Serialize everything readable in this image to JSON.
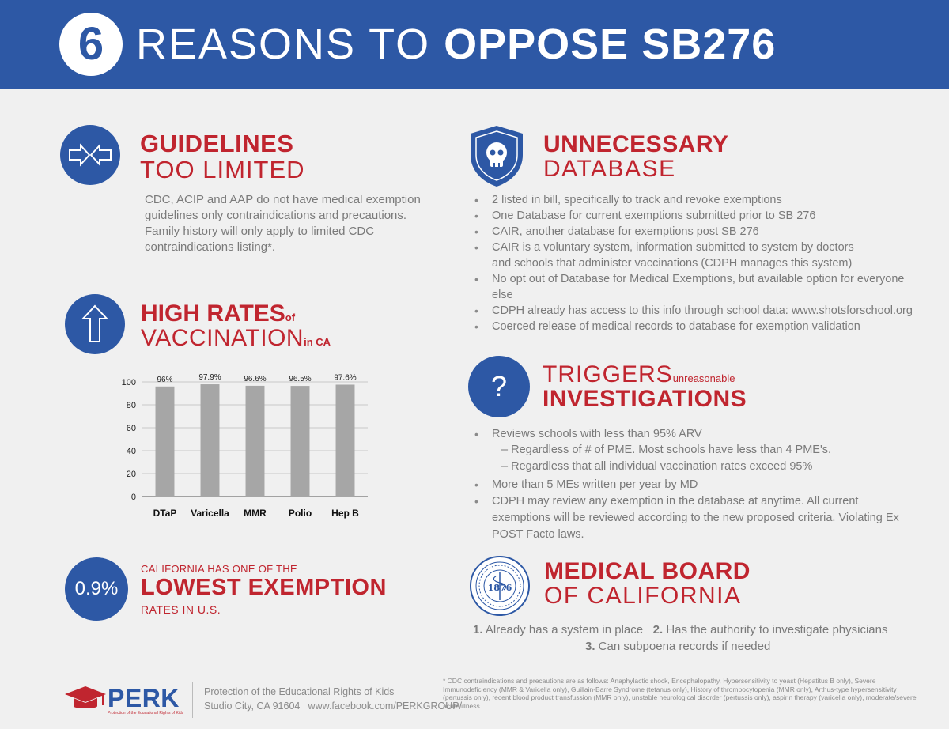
{
  "header": {
    "number": "6",
    "title_light": "REASONS TO ",
    "title_bold": "OPPOSE SB276"
  },
  "guidelines": {
    "heading_bold": "GUIDELINES",
    "heading_light": "TOO LIMITED",
    "body_lines": [
      "CDC, ACIP and AAP do not have medical exemption",
      "guidelines only contraindications and precautions.",
      "Family history will only apply to limited CDC",
      "contraindications listing*."
    ]
  },
  "high_rates": {
    "heading_bold": "HIGH RATES",
    "heading_small": "of",
    "heading_light": "VACCINATION",
    "heading_small2": "in CA"
  },
  "chart_data": {
    "type": "bar",
    "categories": [
      "DTaP",
      "Varicella",
      "MMR",
      "Polio",
      "Hep B"
    ],
    "values": [
      96,
      97.9,
      96.6,
      96.5,
      97.6
    ],
    "data_labels": [
      "96%",
      "97.9%",
      "96.6%",
      "96.5%",
      "97.6%"
    ],
    "yticks": [
      "0",
      "20",
      "40",
      "60",
      "80",
      "100"
    ],
    "ylim": [
      0,
      100
    ],
    "grid": true,
    "bar_color": "#a6a6a6"
  },
  "lowest": {
    "rate": "0.9%",
    "line1": "CALIFORNIA HAS ONE OF THE",
    "line2": "LOWEST EXEMPTION",
    "line3": "RATES IN U.S."
  },
  "database": {
    "heading_bold": "UNNECESSARY",
    "heading_light": "DATABASE",
    "bullets": [
      "2 listed in bill, specifically to track and revoke exemptions",
      "One Database for current exemptions submitted prior to SB 276",
      "CAIR, another database for exemptions post SB 276",
      "CAIR is a voluntary system, information submitted to system by doctors and schools that administer vaccinations (CDPH manages this system)",
      "No opt out of Database for Medical Exemptions, but available option for everyone else",
      "CDPH already has access to this info through school data: www.shotsforschool.org",
      "Coerced release of medical records to database for exemption validation"
    ]
  },
  "triggers": {
    "icon_text": "?",
    "heading_light": "TRIGGERS",
    "heading_small": "unreasonable",
    "heading_bold": "INVESTIGATIONS",
    "bullet1": "Reviews schools with less than 95% ARV",
    "sub1": "– Regardless of  # of PME. Most schools have less than 4 PME's.",
    "sub2": "– Regardless that all individual vaccination rates exceed 95%",
    "bullet2": "More than 5 MEs written per year by MD",
    "bullet3": "CDPH may review any exemption in the database at anytime. All current exemptions will be reviewed according to the new proposed criteria. Violating Ex POST Facto laws."
  },
  "medical_board": {
    "heading_bold": "MEDICAL BOARD",
    "heading_light": "OF CALIFORNIA",
    "seal_year": "1876",
    "item1_num": "1.",
    "item1": " Already has a system in place",
    "item2_num": "2.",
    "item2": " Has the authority to investigate physicians",
    "item3_num": "3.",
    "item3": " Can subpoena records if needed"
  },
  "footer": {
    "logo": "PERK",
    "logo_tagline": "Protection of the Educational Rights of Kids",
    "org_name": "Protection of the Educational Rights of Kids",
    "address_line": "Studio City, CA 91604  |  www.facebook.com/PERKGROUP/",
    "footnote": "* CDC contraindications and precautions are as follows:  Anaphylactic shock, Encephalopathy, Hypersensitivity to yeast (Hepatitus B only), Severe Immunodeficiency (MMR & Varicella only), Guillain-Barre Syndrome (tetanus only), History of thrombocytopenia (MMR only), Arthus-type hypersensitivity (pertussis only), recent blood product transfussion (MMR only), unstable neurological disorder (pertussis only), aspirin therapy (varicella only), moderate/severe acute illness."
  },
  "colors": {
    "brand_blue": "#2d58a5",
    "accent_red": "#c0252f",
    "text_gray": "#7a7a7a",
    "background": "#f0f0f0"
  }
}
